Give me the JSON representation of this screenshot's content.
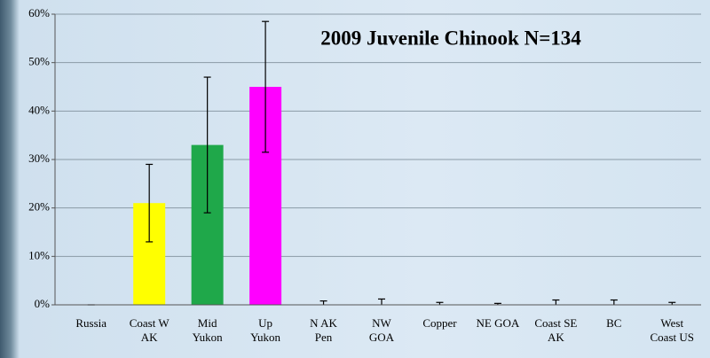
{
  "chart_data": {
    "type": "bar",
    "title": "2009 Juvenile Chinook N=134",
    "categories": [
      "Russia",
      "Coast W\nAK",
      "Mid\nYukon",
      "Up\nYukon",
      "N AK\nPen",
      "NW\nGOA",
      "Copper",
      "NE GOA",
      "Coast SE\nAK",
      "BC",
      "West\nCoast US"
    ],
    "values": [
      0,
      21,
      33,
      45,
      0,
      0,
      0,
      0,
      0,
      0,
      0
    ],
    "errors": [
      0,
      8,
      14,
      13.5,
      0.8,
      1.2,
      0.5,
      0.3,
      1,
      1,
      0.5
    ],
    "colors": [
      "#4f81bd",
      "#ffff00",
      "#1fa84a",
      "#ff00ff",
      "#4f81bd",
      "#4f81bd",
      "#4f81bd",
      "#4f81bd",
      "#4f81bd",
      "#4f81bd",
      "#4f81bd"
    ],
    "ylim": [
      0,
      60
    ],
    "yticks": [
      {
        "value": 0,
        "label": "0%"
      },
      {
        "value": 10,
        "label": "10%"
      },
      {
        "value": 20,
        "label": "20%"
      },
      {
        "value": 30,
        "label": "30%"
      },
      {
        "value": 40,
        "label": "40%"
      },
      {
        "value": 50,
        "label": "50%"
      },
      {
        "value": 60,
        "label": "60%"
      }
    ],
    "grid": true
  }
}
